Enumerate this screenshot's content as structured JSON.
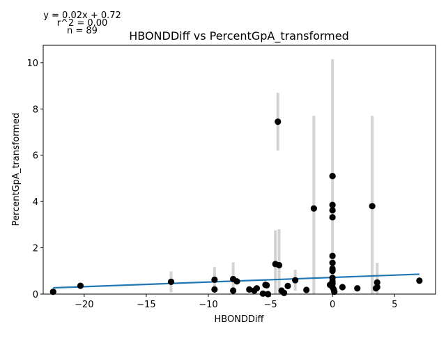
{
  "chart_data": {
    "type": "scatter",
    "title": "HBONDDiff vs PercentGpA_transformed",
    "xlabel": "HBONDDiff",
    "ylabel": "PercentGpA_transformed",
    "annotations": [
      "y = 0.02x + 0.72",
      "r^2 = 0.00",
      "n = 89"
    ],
    "xlim": [
      -23.3,
      8.3
    ],
    "ylim": [
      0,
      10.75
    ],
    "xticks": [
      -20,
      -15,
      -10,
      -5,
      0,
      5
    ],
    "xtick_labels": [
      "−20",
      "−15",
      "−10",
      "−5",
      "0",
      "5"
    ],
    "yticks": [
      0,
      2,
      4,
      6,
      8,
      10
    ],
    "ytick_labels": [
      "0",
      "2",
      "4",
      "6",
      "8",
      "10"
    ],
    "grid": false,
    "colors": {
      "points": "#000000",
      "fit_line": "#1f77b4",
      "error_bars": "#d3d3d3"
    },
    "fit_line": {
      "slope": 0.02,
      "intercept": 0.72,
      "x_range": [
        -22.5,
        7
      ]
    },
    "points": [
      {
        "x": -22.5,
        "y": 0.1
      },
      {
        "x": -20.3,
        "y": 0.36
      },
      {
        "x": -13.0,
        "y": 0.53,
        "err": 0.45
      },
      {
        "x": -9.5,
        "y": 0.62,
        "err": 0.55
      },
      {
        "x": -9.5,
        "y": 0.2
      },
      {
        "x": -8.0,
        "y": 0.65,
        "err": 0.72
      },
      {
        "x": -7.7,
        "y": 0.55
      },
      {
        "x": -8.0,
        "y": 0.15
      },
      {
        "x": -6.7,
        "y": 0.2
      },
      {
        "x": -6.3,
        "y": 0.15
      },
      {
        "x": -6.1,
        "y": 0.25
      },
      {
        "x": -5.6,
        "y": 0.02
      },
      {
        "x": -5.4,
        "y": 0.4
      },
      {
        "x": -5.3,
        "y": 0.38
      },
      {
        "x": -5.2,
        "y": 0.0
      },
      {
        "x": -4.6,
        "y": 1.3,
        "err": 1.45
      },
      {
        "x": -4.4,
        "y": 7.45,
        "err": 1.25
      },
      {
        "x": -4.3,
        "y": 1.25,
        "err": 1.55
      },
      {
        "x": -4.1,
        "y": 0.15
      },
      {
        "x": -3.9,
        "y": 0.05
      },
      {
        "x": -3.6,
        "y": 0.35
      },
      {
        "x": -3.0,
        "y": 0.6,
        "err": 0.45
      },
      {
        "x": -2.1,
        "y": 0.18
      },
      {
        "x": -1.5,
        "y": 3.7,
        "err": 4.0
      },
      {
        "x": -0.2,
        "y": 0.4
      },
      {
        "x": 0.0,
        "y": 5.1,
        "err": 5.05
      },
      {
        "x": 0.0,
        "y": 3.85
      },
      {
        "x": 0.0,
        "y": 3.62
      },
      {
        "x": 0.0,
        "y": 3.32
      },
      {
        "x": 0.0,
        "y": 1.65
      },
      {
        "x": 0.0,
        "y": 1.35
      },
      {
        "x": 0.0,
        "y": 1.1
      },
      {
        "x": 0.0,
        "y": 1.0
      },
      {
        "x": 0.0,
        "y": 0.7
      },
      {
        "x": 0.0,
        "y": 0.55
      },
      {
        "x": 0.0,
        "y": 0.45
      },
      {
        "x": 0.0,
        "y": 0.3
      },
      {
        "x": 0.1,
        "y": 0.2
      },
      {
        "x": 0.15,
        "y": 0.1
      },
      {
        "x": 0.8,
        "y": 0.3
      },
      {
        "x": 2.0,
        "y": 0.25
      },
      {
        "x": 3.2,
        "y": 3.8,
        "err": 3.9
      },
      {
        "x": 3.5,
        "y": 0.25
      },
      {
        "x": 3.6,
        "y": 0.5,
        "err": 0.85
      },
      {
        "x": 3.6,
        "y": 0.3
      },
      {
        "x": 7.0,
        "y": 0.58
      }
    ]
  }
}
